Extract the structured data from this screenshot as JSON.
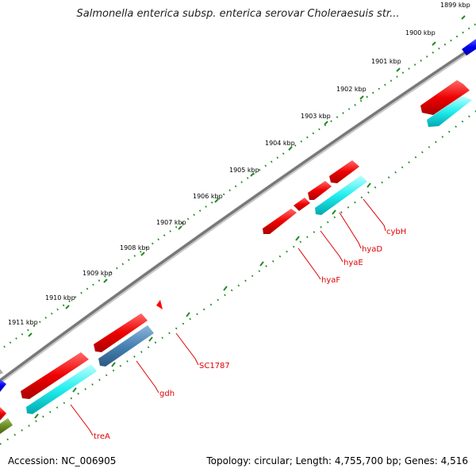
{
  "title": "Salmonella enterica subsp. enterica serovar Choleraesuis str...",
  "footer": {
    "accession": "Accession: NC_006905",
    "summary": "Topology: circular; Length: 4,755,700 bp; Genes: 4,516"
  },
  "ruler": {
    "ticks": [
      "1899 kbp",
      "1900 kbp",
      "1901 kbp",
      "1902 kbp",
      "1903 kbp",
      "1904 kbp",
      "1905 kbp",
      "1906 kbp",
      "1907 kbp",
      "1908 kbp",
      "1909 kbp",
      "1910 kbp",
      "1911 kbp"
    ]
  },
  "genes": [
    "cybH",
    "hyaD",
    "hyaE",
    "hyaF",
    "SC1787",
    "gdh",
    "treA"
  ],
  "colors": {
    "forward_feature": "#ff0000",
    "reverse_feature": "#00ffff",
    "blue_feature": "#0000ff",
    "steelblue_feature": "#4682b4",
    "olive_feature": "#6b8e23",
    "backbone": "#808080",
    "ruler_dots": "#228b22",
    "label": "#e00000"
  }
}
